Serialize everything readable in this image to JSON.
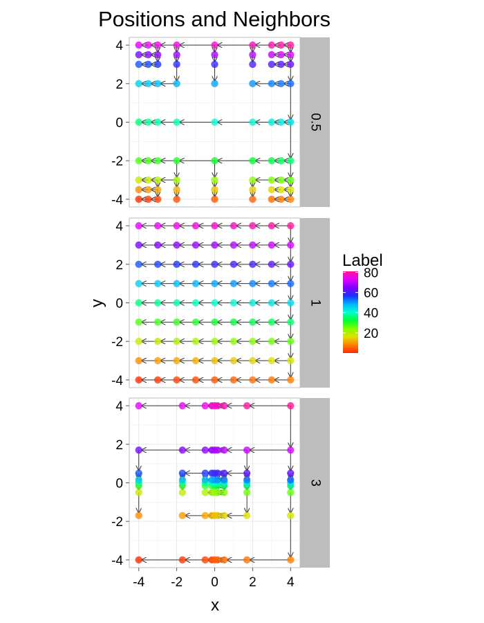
{
  "chart_data": {
    "type": "scatter",
    "title": "Positions and Neighbors",
    "xlabel": "x",
    "ylabel": "y",
    "xlim": [
      -4.5,
      4.5
    ],
    "ylim": [
      -4.4,
      4.4
    ],
    "x_ticks": [
      "-4",
      "-2",
      "0",
      "2",
      "4"
    ],
    "y_ticks": [
      "-4",
      "-2",
      "0",
      "2",
      "4"
    ],
    "grid": true,
    "legend": {
      "title": "Label",
      "placement": "right",
      "ticks": [
        "80",
        "60",
        "40",
        "20"
      ],
      "tick_values": [
        80,
        60,
        40,
        20
      ],
      "range": [
        0,
        81
      ],
      "colors": [
        "#ff2a00",
        "#ff8000",
        "#e0e000",
        "#80ff00",
        "#00ff33",
        "#00ffcc",
        "#00b3ff",
        "#1a33ff",
        "#8000ff",
        "#e000ff",
        "#ff1493"
      ]
    },
    "facets": [
      {
        "label": "0.5",
        "grid": [
          [
            -4,
            -3.5,
            -3,
            -2,
            0,
            2,
            3,
            3.5,
            4
          ],
          [
            -4,
            -3.5,
            -3,
            -2,
            0,
            2,
            3,
            3.5,
            4
          ]
        ],
        "exclude_center_block": true
      },
      {
        "label": "1",
        "grid": [
          [
            -4,
            -3,
            -2,
            -1,
            0,
            1,
            2,
            3,
            4
          ],
          [
            -4,
            -3,
            -2,
            -1,
            0,
            1,
            2,
            3,
            4
          ]
        ],
        "exclude_center_block": false
      },
      {
        "label": "3",
        "grid": [
          [
            -4,
            -1.7,
            -0.5,
            -0.15,
            0,
            0.15,
            0.5,
            1.7,
            4
          ],
          [
            -4,
            -1.7,
            -0.5,
            -0.15,
            0,
            0.15,
            0.5,
            1.7,
            4
          ]
        ],
        "exclude_center_block": false
      }
    ]
  }
}
